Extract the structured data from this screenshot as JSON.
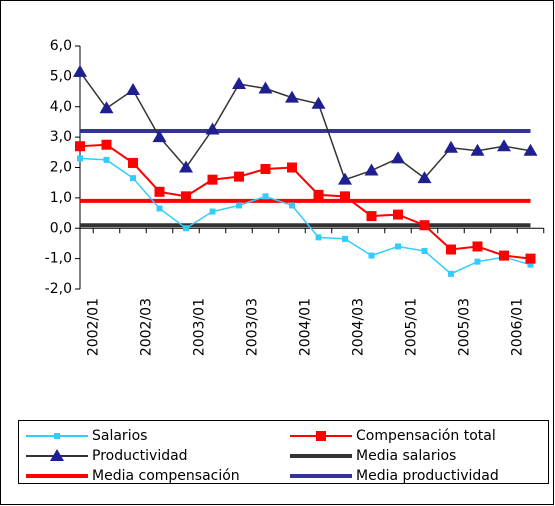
{
  "chart_data": {
    "type": "line",
    "categories": [
      "2002/01",
      null,
      "2002/03",
      null,
      "2003/01",
      null,
      "2003/03",
      null,
      "2004/01",
      null,
      "2004/03",
      null,
      "2005/01",
      null,
      "2005/03",
      null,
      "2006/01",
      null
    ],
    "series": [
      {
        "name": "Salarios",
        "color": "#33ccff",
        "marker": "square",
        "values": [
          2.3,
          2.25,
          1.65,
          0.65,
          0.0,
          0.55,
          0.75,
          1.05,
          0.75,
          -0.3,
          -0.35,
          -0.9,
          -0.6,
          -0.75,
          -1.5,
          -1.1,
          -0.95,
          -1.2
        ]
      },
      {
        "name": "Compensación total",
        "color": "#ff0000",
        "marker": "bigsquare",
        "values": [
          2.7,
          2.75,
          2.15,
          1.2,
          1.05,
          1.6,
          1.7,
          1.95,
          2.0,
          1.1,
          1.05,
          0.4,
          0.45,
          0.1,
          -0.7,
          -0.6,
          -0.9,
          -1.0
        ]
      },
      {
        "name": "Productividad",
        "color": "#333333",
        "marker_color": "#1f1f8f",
        "marker": "triangle",
        "values": [
          5.15,
          3.95,
          4.55,
          3.0,
          2.0,
          3.25,
          4.75,
          4.6,
          4.3,
          4.1,
          1.6,
          1.9,
          2.3,
          1.65,
          2.65,
          2.55,
          2.7,
          2.55
        ]
      },
      {
        "name": "Media salarios",
        "color": "#333333",
        "marker": "none",
        "values": [
          0.1,
          0.1,
          0.1,
          0.1,
          0.1,
          0.1,
          0.1,
          0.1,
          0.1,
          0.1,
          0.1,
          0.1,
          0.1,
          0.1,
          0.1,
          0.1,
          0.1,
          0.1
        ]
      },
      {
        "name": "Media compensación",
        "color": "#ff0000",
        "marker": "none",
        "values": [
          0.9,
          0.9,
          0.9,
          0.9,
          0.9,
          0.9,
          0.9,
          0.9,
          0.9,
          0.9,
          0.9,
          0.9,
          0.9,
          0.9,
          0.9,
          0.9,
          0.9,
          0.9
        ]
      },
      {
        "name": "Media productividad",
        "color": "#333399",
        "marker": "none",
        "values": [
          3.2,
          3.2,
          3.2,
          3.2,
          3.2,
          3.2,
          3.2,
          3.2,
          3.2,
          3.2,
          3.2,
          3.2,
          3.2,
          3.2,
          3.2,
          3.2,
          3.2,
          3.2
        ]
      }
    ],
    "ylim": [
      -2,
      6
    ],
    "yticks": [
      {
        "value": -2,
        "label": "-2,0"
      },
      {
        "value": -1,
        "label": "-1,0"
      },
      {
        "value": 0,
        "label": "0,0"
      },
      {
        "value": 1,
        "label": "1,0"
      },
      {
        "value": 2,
        "label": "2,0"
      },
      {
        "value": 3,
        "label": "3,0"
      },
      {
        "value": 4,
        "label": "4,0"
      },
      {
        "value": 5,
        "label": "5,0"
      },
      {
        "value": 6,
        "label": "6,0"
      }
    ],
    "legend": "bottom"
  }
}
